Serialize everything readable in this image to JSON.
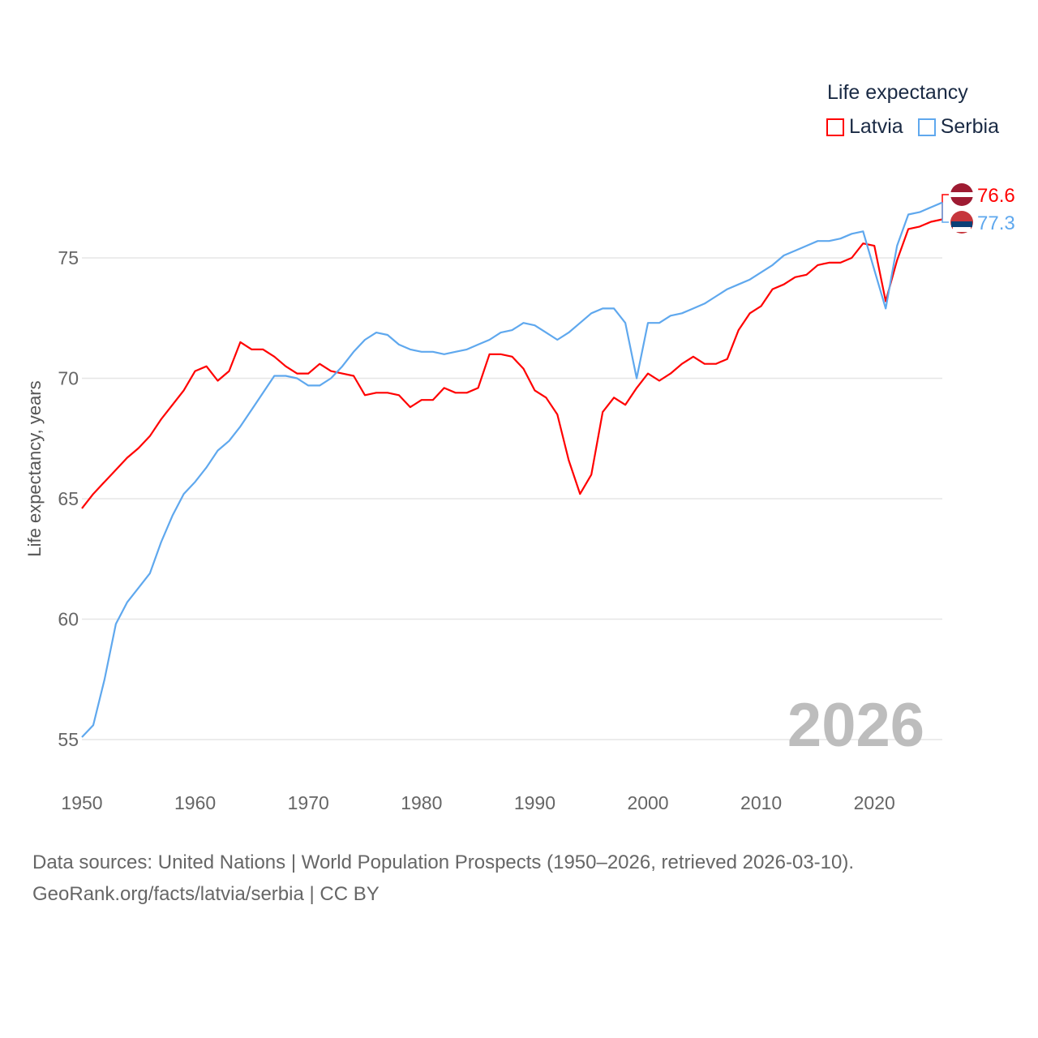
{
  "chart_data": {
    "type": "line",
    "title": "Life expectancy",
    "ylabel": "Life expectancy, years",
    "xlabel": "",
    "xlim": [
      1950,
      2026
    ],
    "ylim": [
      53.5,
      79
    ],
    "x_ticks": [
      1950,
      1960,
      1970,
      1980,
      1990,
      2000,
      2010,
      2020
    ],
    "y_ticks": [
      55,
      60,
      65,
      70,
      75
    ],
    "grid": true,
    "legend_position": "top-right",
    "year_watermark": "2026",
    "x_start": 1950,
    "series": [
      {
        "name": "Latvia",
        "color": "#ff0000",
        "end_label": "76.6",
        "values": [
          64.6,
          65.2,
          65.7,
          66.2,
          66.7,
          67.1,
          67.6,
          68.3,
          68.9,
          69.5,
          70.3,
          70.5,
          69.9,
          70.3,
          71.5,
          71.2,
          71.2,
          70.9,
          70.5,
          70.2,
          70.2,
          70.6,
          70.3,
          70.2,
          70.1,
          69.3,
          69.4,
          69.4,
          69.3,
          68.8,
          69.1,
          69.1,
          69.6,
          69.4,
          69.4,
          69.6,
          71.0,
          71.0,
          70.9,
          70.4,
          69.5,
          69.2,
          68.5,
          66.6,
          65.2,
          66.0,
          68.6,
          69.2,
          68.9,
          69.6,
          70.2,
          69.9,
          70.2,
          70.6,
          70.9,
          70.6,
          70.6,
          70.8,
          72.0,
          72.7,
          73.0,
          73.7,
          73.9,
          74.2,
          74.3,
          74.7,
          74.8,
          74.8,
          75.0,
          75.6,
          75.5,
          73.2,
          74.9,
          76.2,
          76.3,
          76.5,
          76.6
        ]
      },
      {
        "name": "Serbia",
        "color": "#5fa8ee",
        "end_label": "77.3",
        "values": [
          55.1,
          55.6,
          57.5,
          59.8,
          60.7,
          61.3,
          61.9,
          63.2,
          64.3,
          65.2,
          65.7,
          66.3,
          67.0,
          67.4,
          68.0,
          68.7,
          69.4,
          70.1,
          70.1,
          70.0,
          69.7,
          69.7,
          70.0,
          70.5,
          71.1,
          71.6,
          71.9,
          71.8,
          71.4,
          71.2,
          71.1,
          71.1,
          71.0,
          71.1,
          71.2,
          71.4,
          71.6,
          71.9,
          72.0,
          72.3,
          72.2,
          71.9,
          71.6,
          71.9,
          72.3,
          72.7,
          72.9,
          72.9,
          72.3,
          70.0,
          72.3,
          72.3,
          72.6,
          72.7,
          72.9,
          73.1,
          73.4,
          73.7,
          73.9,
          74.1,
          74.4,
          74.7,
          75.1,
          75.3,
          75.5,
          75.7,
          75.7,
          75.8,
          76.0,
          76.1,
          74.5,
          72.9,
          75.5,
          76.8,
          76.9,
          77.1,
          77.3
        ]
      }
    ]
  },
  "footer": {
    "line1": "Data sources: United Nations | World Population Prospects (1950–2026, retrieved 2026-03-10).",
    "line2": "GeoRank.org/facts/latvia/serbia | CC BY"
  }
}
